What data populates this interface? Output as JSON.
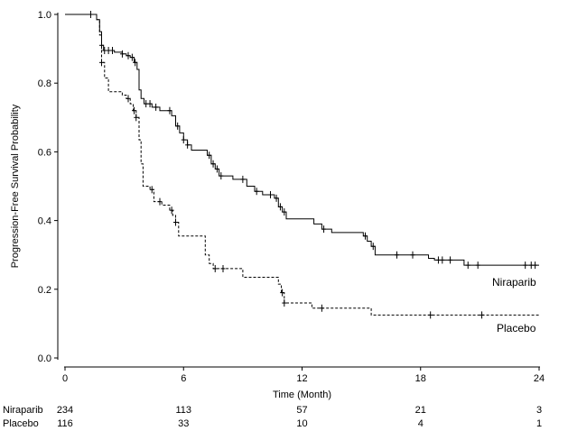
{
  "chart_data": {
    "type": "line",
    "xlabel": "Time (Month)",
    "ylabel": "Progression-Free Survival Probability",
    "xlim": [
      0,
      24
    ],
    "ylim": [
      0,
      1
    ],
    "xticks": [
      "0",
      "6",
      "12",
      "18",
      "24"
    ],
    "yticks": [
      "0.0",
      "0.2",
      "0.4",
      "0.6",
      "0.8",
      "1.0"
    ],
    "grid": false,
    "legend": "inline labels at right end of curves",
    "series": [
      {
        "name": "Niraparib",
        "line_style": "solid",
        "color": "#000000",
        "steps": [
          [
            0,
            1.0
          ],
          [
            1.6,
            0.985
          ],
          [
            1.75,
            0.95
          ],
          [
            1.85,
            0.91
          ],
          [
            1.95,
            0.895
          ],
          [
            2.5,
            0.89
          ],
          [
            2.9,
            0.885
          ],
          [
            3.1,
            0.88
          ],
          [
            3.3,
            0.875
          ],
          [
            3.5,
            0.86
          ],
          [
            3.65,
            0.84
          ],
          [
            3.75,
            0.78
          ],
          [
            3.85,
            0.755
          ],
          [
            4.0,
            0.74
          ],
          [
            4.4,
            0.73
          ],
          [
            4.8,
            0.72
          ],
          [
            5.2,
            0.72
          ],
          [
            5.4,
            0.705
          ],
          [
            5.6,
            0.675
          ],
          [
            5.8,
            0.655
          ],
          [
            6.0,
            0.635
          ],
          [
            6.2,
            0.62
          ],
          [
            6.4,
            0.605
          ],
          [
            7.2,
            0.59
          ],
          [
            7.4,
            0.565
          ],
          [
            7.6,
            0.55
          ],
          [
            7.8,
            0.53
          ],
          [
            8.5,
            0.52
          ],
          [
            9.2,
            0.5
          ],
          [
            9.6,
            0.485
          ],
          [
            10.0,
            0.475
          ],
          [
            10.6,
            0.465
          ],
          [
            10.8,
            0.44
          ],
          [
            11.0,
            0.425
          ],
          [
            11.2,
            0.405
          ],
          [
            12.6,
            0.39
          ],
          [
            13.0,
            0.375
          ],
          [
            13.5,
            0.365
          ],
          [
            15.1,
            0.355
          ],
          [
            15.3,
            0.34
          ],
          [
            15.5,
            0.325
          ],
          [
            15.7,
            0.3
          ],
          [
            18.4,
            0.29
          ],
          [
            18.7,
            0.285
          ],
          [
            19.2,
            0.285
          ],
          [
            20.2,
            0.27
          ],
          [
            24.0,
            0.27
          ]
        ],
        "censor_x": [
          1.3,
          1.85,
          2.0,
          2.2,
          2.4,
          2.9,
          3.2,
          3.4,
          3.55,
          4.1,
          4.3,
          4.6,
          5.3,
          5.7,
          6.0,
          6.2,
          7.3,
          7.5,
          7.7,
          7.9,
          9.0,
          9.7,
          10.4,
          10.7,
          10.9,
          11.1,
          13.1,
          15.2,
          15.6,
          16.8,
          17.6,
          18.9,
          19.1,
          19.5,
          20.4,
          20.9,
          23.3,
          23.6,
          23.8
        ]
      },
      {
        "name": "Placebo",
        "line_style": "dashed",
        "color": "#000000",
        "steps": [
          [
            0,
            1.0
          ],
          [
            1.6,
            0.985
          ],
          [
            1.75,
            0.94
          ],
          [
            1.85,
            0.86
          ],
          [
            2.0,
            0.815
          ],
          [
            2.2,
            0.775
          ],
          [
            2.9,
            0.765
          ],
          [
            3.1,
            0.755
          ],
          [
            3.3,
            0.74
          ],
          [
            3.45,
            0.72
          ],
          [
            3.6,
            0.7
          ],
          [
            3.75,
            0.635
          ],
          [
            3.85,
            0.565
          ],
          [
            3.95,
            0.5
          ],
          [
            4.3,
            0.49
          ],
          [
            4.5,
            0.455
          ],
          [
            4.9,
            0.445
          ],
          [
            5.3,
            0.43
          ],
          [
            5.45,
            0.415
          ],
          [
            5.6,
            0.395
          ],
          [
            5.75,
            0.355
          ],
          [
            7.1,
            0.3
          ],
          [
            7.3,
            0.275
          ],
          [
            7.5,
            0.26
          ],
          [
            9.0,
            0.235
          ],
          [
            10.8,
            0.215
          ],
          [
            10.95,
            0.19
          ],
          [
            11.1,
            0.16
          ],
          [
            12.5,
            0.145
          ],
          [
            15.5,
            0.125
          ],
          [
            24.0,
            0.125
          ]
        ],
        "censor_x": [
          1.85,
          3.2,
          3.5,
          3.6,
          4.4,
          4.8,
          5.4,
          5.6,
          7.6,
          8.0,
          11.0,
          11.1,
          13.0,
          18.5,
          21.1
        ]
      }
    ],
    "risk_table": {
      "times": [
        "0",
        "6",
        "12",
        "18",
        "24"
      ],
      "rows": [
        {
          "label": "Niraparib",
          "counts": [
            "234",
            "113",
            "57",
            "21",
            "3"
          ]
        },
        {
          "label": "Placebo",
          "counts": [
            "116",
            "33",
            "10",
            "4",
            "1"
          ]
        }
      ]
    }
  }
}
